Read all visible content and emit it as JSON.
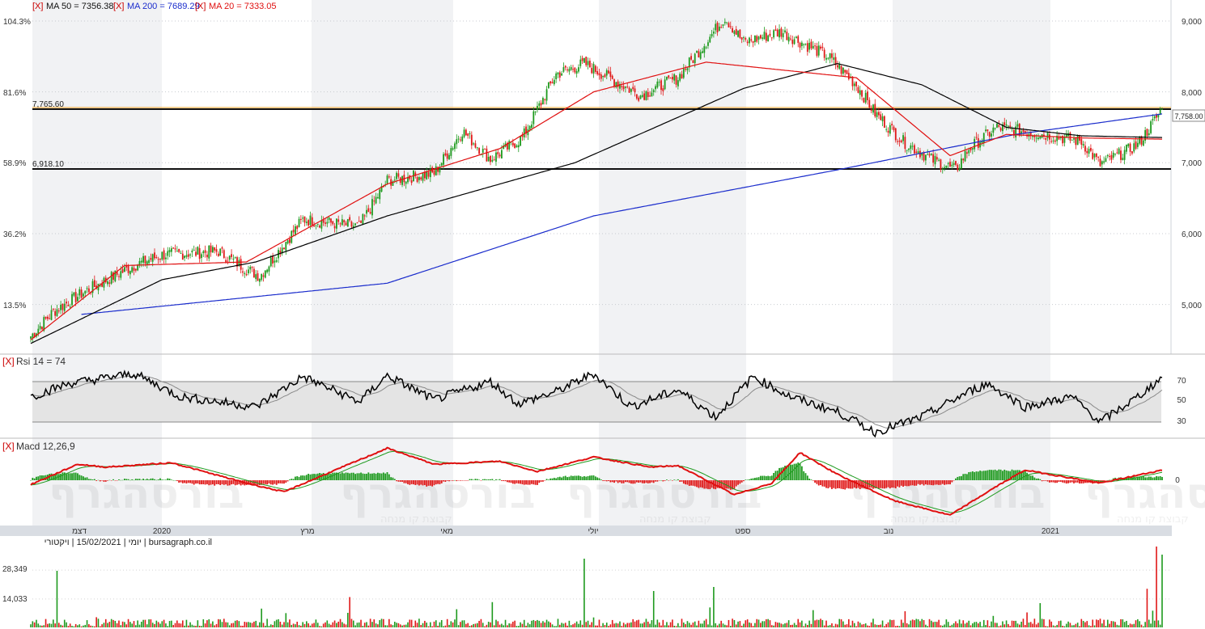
{
  "legend": {
    "x_mark": "[X]",
    "ma50": "MA 50 = 7356.38",
    "ma200": "MA 200 = 7689.29",
    "ma20": "MA 20 = 7333.05",
    "rsi": "Rsi 14 = 74",
    "macd": "Macd 12,26,9",
    "volume_caption": "יומי | 15/02/2021 | ויקטורי | bursagraph.co.il"
  },
  "colors": {
    "ma50": "#000000",
    "ma200": "#1a2ccc",
    "ma20": "#e01010",
    "candle_up": "#1e9a1e",
    "candle_down": "#e01818",
    "panel_shade": "#f1f2f4",
    "xaxis_bar": "#d9dde3",
    "level_line_highlight": "#f0a020"
  },
  "price_axis": {
    "right_ticks": [
      "9,000",
      "8,000",
      "7,000",
      "6,000",
      "5,000"
    ],
    "left_percent_ticks": [
      "104.3%",
      "81.6%",
      "58.9%",
      "36.2%",
      "13.5%"
    ],
    "last_price_label": "7,758.00"
  },
  "levels": {
    "upper_label": "7,765.60",
    "lower_label": "6,918.10"
  },
  "rsi_axis": {
    "ticks": [
      "70",
      "50",
      "30"
    ]
  },
  "macd_axis": {
    "ticks": [
      "0"
    ]
  },
  "volume_axis": {
    "ticks": [
      "28,349",
      "14,033"
    ]
  },
  "x_axis": {
    "labels": [
      "דצמ",
      "2020",
      "מרץ",
      "מאי",
      "יולי",
      "ספט",
      "נוב",
      "2021"
    ]
  },
  "watermark": {
    "main": "בורסהגרף",
    "sub": "קבוצת קו מנחה"
  },
  "chart_data": {
    "type": "candlestick",
    "title": "",
    "y_range": [
      4000,
      9300
    ],
    "levels": [
      7765.6,
      6918.1
    ],
    "last_close": 7758,
    "ma_values": {
      "ma50": 7356.38,
      "ma200": 7689.29,
      "ma20": 7333.05
    },
    "rsi_last": 74,
    "x_labels": [
      "דצמ",
      "2020",
      "מרץ",
      "מאי",
      "יולי",
      "ספט",
      "נוב",
      "2021"
    ],
    "close_anchors": [
      [
        0,
        4550
      ],
      [
        12,
        4900
      ],
      [
        30,
        5200
      ],
      [
        55,
        5550
      ],
      [
        70,
        5700
      ],
      [
        100,
        5750
      ],
      [
        115,
        5500
      ],
      [
        122,
        5400
      ],
      [
        145,
        6200
      ],
      [
        175,
        6100
      ],
      [
        190,
        6750
      ],
      [
        215,
        6850
      ],
      [
        230,
        7450
      ],
      [
        245,
        7050
      ],
      [
        262,
        7350
      ],
      [
        280,
        8250
      ],
      [
        295,
        8400
      ],
      [
        325,
        7950
      ],
      [
        345,
        8200
      ],
      [
        370,
        9050
      ],
      [
        380,
        8700
      ],
      [
        400,
        8850
      ],
      [
        425,
        8500
      ],
      [
        440,
        8100
      ],
      [
        450,
        7700
      ],
      [
        465,
        7300
      ],
      [
        480,
        7050
      ],
      [
        493,
        6900
      ],
      [
        500,
        7200
      ],
      [
        515,
        7500
      ],
      [
        540,
        7400
      ],
      [
        560,
        7300
      ],
      [
        570,
        6980
      ],
      [
        590,
        7250
      ],
      [
        603,
        7758
      ]
    ],
    "ma200_anchors": [
      [
        27,
        4860
      ],
      [
        190,
        5300
      ],
      [
        300,
        6250
      ],
      [
        430,
        6900
      ],
      [
        525,
        7400
      ],
      [
        603,
        7689
      ]
    ],
    "ma50_anchors": [
      [
        0,
        4450
      ],
      [
        70,
        5350
      ],
      [
        120,
        5600
      ],
      [
        190,
        6250
      ],
      [
        290,
        7000
      ],
      [
        380,
        8050
      ],
      [
        430,
        8400
      ],
      [
        475,
        8100
      ],
      [
        520,
        7500
      ],
      [
        560,
        7380
      ],
      [
        603,
        7356
      ]
    ],
    "ma20_anchors": [
      [
        0,
        4500
      ],
      [
        50,
        5550
      ],
      [
        115,
        5600
      ],
      [
        190,
        6700
      ],
      [
        250,
        7200
      ],
      [
        300,
        8000
      ],
      [
        360,
        8420
      ],
      [
        440,
        8200
      ],
      [
        490,
        7100
      ],
      [
        520,
        7400
      ],
      [
        560,
        7350
      ],
      [
        603,
        7333
      ]
    ],
    "rsi_anchors": [
      [
        0,
        55
      ],
      [
        20,
        68
      ],
      [
        55,
        78
      ],
      [
        80,
        55
      ],
      [
        120,
        45
      ],
      [
        145,
        75
      ],
      [
        175,
        50
      ],
      [
        190,
        76
      ],
      [
        215,
        52
      ],
      [
        245,
        70
      ],
      [
        260,
        48
      ],
      [
        280,
        60
      ],
      [
        300,
        78
      ],
      [
        320,
        45
      ],
      [
        345,
        62
      ],
      [
        365,
        35
      ],
      [
        385,
        75
      ],
      [
        405,
        55
      ],
      [
        430,
        40
      ],
      [
        450,
        20
      ],
      [
        475,
        35
      ],
      [
        500,
        60
      ],
      [
        510,
        68
      ],
      [
        530,
        45
      ],
      [
        555,
        55
      ],
      [
        570,
        30
      ],
      [
        590,
        55
      ],
      [
        603,
        74
      ]
    ],
    "macd_anchors": [
      [
        0,
        -15
      ],
      [
        25,
        55
      ],
      [
        40,
        45
      ],
      [
        75,
        60
      ],
      [
        115,
        -10
      ],
      [
        135,
        -40
      ],
      [
        155,
        15
      ],
      [
        190,
        110
      ],
      [
        215,
        55
      ],
      [
        250,
        65
      ],
      [
        270,
        30
      ],
      [
        300,
        80
      ],
      [
        330,
        45
      ],
      [
        345,
        50
      ],
      [
        375,
        -50
      ],
      [
        395,
        -10
      ],
      [
        410,
        95
      ],
      [
        430,
        20
      ],
      [
        460,
        -70
      ],
      [
        490,
        -120
      ],
      [
        515,
        -20
      ],
      [
        530,
        35
      ],
      [
        570,
        -10
      ],
      [
        603,
        35
      ]
    ],
    "volume_max_label": 28349,
    "volume_mid_label": 14033
  }
}
